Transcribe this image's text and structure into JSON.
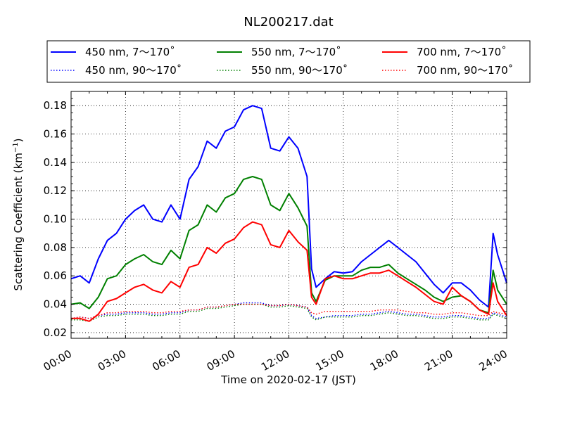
{
  "chart_data": {
    "type": "line",
    "title": "NL200217.dat",
    "xlabel": "Time on 2020-02-17 (JST)",
    "ylabel": "Scattering Coefficient (km",
    "ylabel_sup": "−1",
    "ylabel_end": ")",
    "xlim": [
      0,
      24
    ],
    "ylim": [
      0.016,
      0.19
    ],
    "x_ticks": [
      0,
      3,
      6,
      9,
      12,
      15,
      18,
      21,
      24
    ],
    "x_tick_labels": [
      "00:00",
      "03:00",
      "06:00",
      "09:00",
      "12:00",
      "15:00",
      "18:00",
      "21:00",
      "24:00"
    ],
    "y_ticks": [
      0.02,
      0.04,
      0.06,
      0.08,
      0.1,
      0.12,
      0.14,
      0.16,
      0.18
    ],
    "y_tick_labels": [
      "0.02",
      "0.04",
      "0.06",
      "0.08",
      "0.10",
      "0.12",
      "0.14",
      "0.16",
      "0.18"
    ],
    "grid": true,
    "legend_position": "top",
    "x": [
      0,
      0.5,
      1,
      1.5,
      2,
      2.5,
      3,
      3.5,
      4,
      4.5,
      5,
      5.5,
      6,
      6.5,
      7,
      7.5,
      8,
      8.5,
      9,
      9.5,
      10,
      10.5,
      11,
      11.5,
      12,
      12.5,
      13,
      13.25,
      13.5,
      14,
      14.5,
      15,
      15.5,
      16,
      16.5,
      17,
      17.5,
      18,
      18.5,
      19,
      19.5,
      20,
      20.5,
      21,
      21.5,
      22,
      22.5,
      23,
      23.25,
      23.5,
      24
    ],
    "series": [
      {
        "name": "450 nm, 7～170˚",
        "color": "#0000ff",
        "style": "solid",
        "values": [
          0.058,
          0.06,
          0.055,
          0.072,
          0.085,
          0.09,
          0.1,
          0.106,
          0.11,
          0.1,
          0.098,
          0.11,
          0.1,
          0.128,
          0.137,
          0.155,
          0.15,
          0.162,
          0.165,
          0.177,
          0.18,
          0.178,
          0.15,
          0.148,
          0.158,
          0.15,
          0.13,
          0.065,
          0.052,
          0.058,
          0.063,
          0.062,
          0.063,
          0.07,
          0.075,
          0.08,
          0.085,
          0.08,
          0.075,
          0.07,
          0.062,
          0.054,
          0.048,
          0.055,
          0.055,
          0.05,
          0.043,
          0.038,
          0.09,
          0.075,
          0.055
        ]
      },
      {
        "name": "550 nm, 7～170˚",
        "color": "#008000",
        "style": "solid",
        "values": [
          0.04,
          0.041,
          0.037,
          0.045,
          0.058,
          0.06,
          0.068,
          0.072,
          0.075,
          0.07,
          0.068,
          0.078,
          0.072,
          0.092,
          0.096,
          0.11,
          0.105,
          0.115,
          0.118,
          0.128,
          0.13,
          0.128,
          0.11,
          0.106,
          0.118,
          0.108,
          0.095,
          0.048,
          0.042,
          0.057,
          0.06,
          0.06,
          0.06,
          0.064,
          0.066,
          0.066,
          0.068,
          0.062,
          0.058,
          0.054,
          0.05,
          0.045,
          0.042,
          0.045,
          0.046,
          0.042,
          0.036,
          0.034,
          0.064,
          0.05,
          0.04
        ]
      },
      {
        "name": "700 nm, 7～170˚",
        "color": "#ff0000",
        "style": "solid",
        "values": [
          0.03,
          0.03,
          0.028,
          0.033,
          0.042,
          0.044,
          0.048,
          0.052,
          0.054,
          0.05,
          0.048,
          0.056,
          0.052,
          0.066,
          0.068,
          0.08,
          0.076,
          0.083,
          0.086,
          0.094,
          0.098,
          0.096,
          0.082,
          0.08,
          0.092,
          0.084,
          0.078,
          0.045,
          0.04,
          0.058,
          0.06,
          0.058,
          0.058,
          0.06,
          0.062,
          0.062,
          0.064,
          0.06,
          0.056,
          0.052,
          0.047,
          0.042,
          0.04,
          0.052,
          0.046,
          0.042,
          0.036,
          0.033,
          0.055,
          0.042,
          0.032
        ]
      },
      {
        "name": "450 nm, 90～170˚",
        "color": "#0000ff",
        "style": "dotted",
        "values": [
          0.03,
          0.031,
          0.03,
          0.032,
          0.033,
          0.033,
          0.034,
          0.034,
          0.034,
          0.033,
          0.033,
          0.034,
          0.034,
          0.036,
          0.036,
          0.038,
          0.038,
          0.039,
          0.04,
          0.041,
          0.041,
          0.041,
          0.039,
          0.039,
          0.04,
          0.039,
          0.038,
          0.032,
          0.03,
          0.031,
          0.032,
          0.032,
          0.032,
          0.033,
          0.033,
          0.034,
          0.035,
          0.034,
          0.033,
          0.033,
          0.032,
          0.031,
          0.031,
          0.032,
          0.032,
          0.031,
          0.03,
          0.03,
          0.034,
          0.033,
          0.031
        ]
      },
      {
        "name": "550 nm, 90～170˚",
        "color": "#008000",
        "style": "dotted",
        "values": [
          0.029,
          0.029,
          0.028,
          0.031,
          0.032,
          0.032,
          0.033,
          0.033,
          0.033,
          0.032,
          0.032,
          0.033,
          0.033,
          0.035,
          0.035,
          0.037,
          0.037,
          0.038,
          0.039,
          0.04,
          0.04,
          0.04,
          0.038,
          0.038,
          0.039,
          0.038,
          0.037,
          0.031,
          0.029,
          0.031,
          0.031,
          0.031,
          0.031,
          0.032,
          0.032,
          0.033,
          0.034,
          0.033,
          0.032,
          0.032,
          0.031,
          0.03,
          0.03,
          0.031,
          0.031,
          0.03,
          0.029,
          0.029,
          0.033,
          0.032,
          0.03
        ]
      },
      {
        "name": "700 nm, 90～170˚",
        "color": "#ff0000",
        "style": "dotted",
        "values": [
          0.03,
          0.031,
          0.03,
          0.032,
          0.034,
          0.034,
          0.035,
          0.035,
          0.035,
          0.034,
          0.034,
          0.035,
          0.035,
          0.036,
          0.036,
          0.038,
          0.038,
          0.039,
          0.04,
          0.04,
          0.04,
          0.04,
          0.039,
          0.039,
          0.04,
          0.039,
          0.038,
          0.034,
          0.033,
          0.035,
          0.035,
          0.035,
          0.035,
          0.035,
          0.035,
          0.036,
          0.036,
          0.036,
          0.035,
          0.034,
          0.034,
          0.033,
          0.033,
          0.034,
          0.034,
          0.033,
          0.032,
          0.032,
          0.035,
          0.034,
          0.033
        ]
      }
    ]
  }
}
